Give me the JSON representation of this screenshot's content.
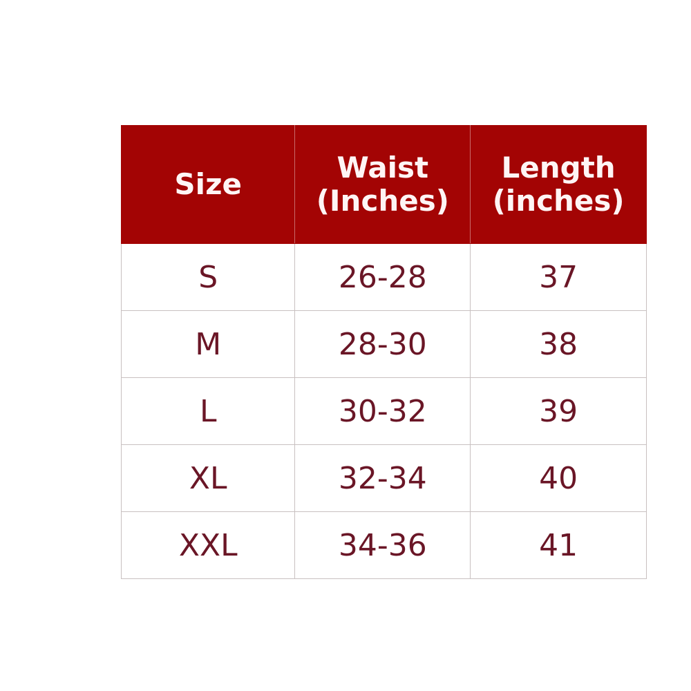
{
  "table": {
    "headers": [
      {
        "line1": "Size",
        "line2": ""
      },
      {
        "line1": "Waist",
        "line2": "(Inches)"
      },
      {
        "line1": "Length",
        "line2": "(inches)"
      }
    ],
    "rows": [
      [
        "S",
        "26-28",
        "37"
      ],
      [
        "M",
        "28-30",
        "38"
      ],
      [
        "L",
        "30-32",
        "39"
      ],
      [
        "XL",
        "32-34",
        "40"
      ],
      [
        "XXL",
        "34-36",
        "41"
      ]
    ],
    "colors": {
      "header_bg": "#a30404",
      "header_text": "#ffffff",
      "body_text": "#6a1626"
    }
  }
}
